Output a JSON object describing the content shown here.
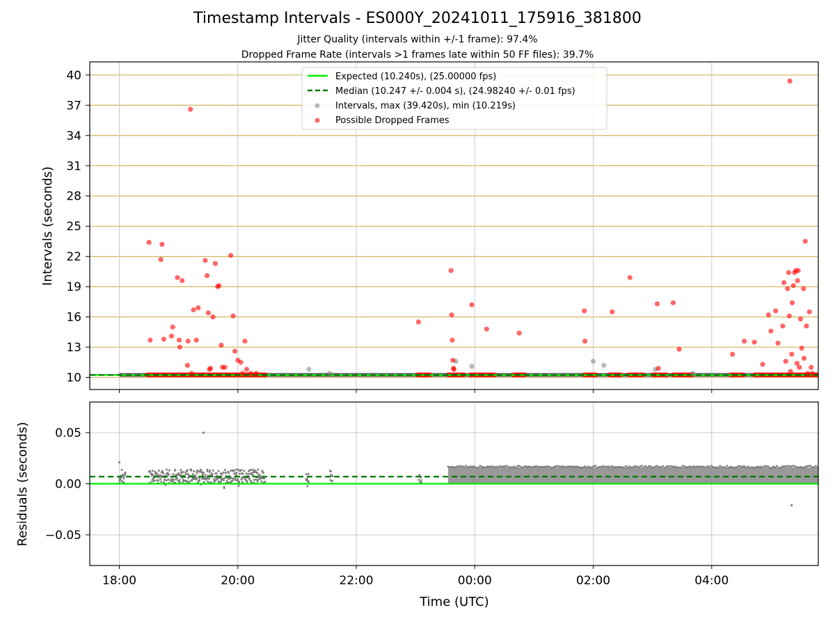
{
  "chart_data": [
    {
      "type": "scatter",
      "title": "Timestamp Intervals - ES000Y_20241011_175916_381800",
      "subtitle_lines": [
        "Jitter Quality (intervals within +/-1 frame): 97.4%",
        "Dropped Frame Rate (intervals >1 frames late within 50 FF files): 39.7%"
      ],
      "xlabel": "",
      "ylabel": "Intervals (seconds)",
      "ylim": [
        8.8,
        41.3
      ],
      "yticks": [
        10,
        13,
        16,
        19,
        22,
        25,
        28,
        31,
        34,
        37,
        40
      ],
      "xlim_hours": [
        17.5,
        29.8
      ],
      "xtick_positions_hours": [
        18,
        20,
        22,
        24,
        26,
        28
      ],
      "legend": {
        "placement": "upper center",
        "entries": [
          "Expected (10.240s), (25.00000 fps)",
          "Median (10.247 +/- 0.004 s), (24.98240 +/- 0.01 fps)",
          "Intervals, max (39.420s), min (10.219s)",
          "Possible Dropped Frames"
        ]
      },
      "expected_value": 10.24,
      "median_value": 10.247,
      "series": [
        {
          "name": "Possible Dropped Frames",
          "color": "#ff0000",
          "x": [
            18.5,
            18.52,
            18.7,
            18.72,
            18.75,
            18.88,
            18.9,
            18.98,
            19.01,
            19.02,
            19.06,
            19.15,
            19.16,
            19.2,
            19.22,
            19.25,
            19.3,
            19.33,
            19.45,
            19.48,
            19.5,
            19.52,
            19.54,
            19.58,
            19.62,
            19.66,
            19.68,
            19.72,
            19.74,
            19.78,
            19.88,
            19.92,
            19.95,
            20.0,
            20.05,
            20.08,
            20.12,
            20.15,
            20.22,
            20.31,
            23.05,
            23.6,
            23.61,
            23.62,
            23.63,
            23.64,
            23.65,
            23.95,
            24.2,
            24.75,
            25.85,
            25.86,
            26.32,
            26.62,
            27.08,
            27.1,
            27.35,
            27.45,
            28.35,
            28.55,
            28.72,
            28.86,
            28.96,
            29.0,
            29.08,
            29.12,
            29.2,
            29.22,
            29.25,
            29.28,
            29.3,
            29.31,
            29.32,
            29.33,
            29.35,
            29.36,
            29.38,
            29.4,
            29.42,
            29.44,
            29.45,
            29.46,
            29.48,
            29.5,
            29.52,
            29.55,
            29.56,
            29.58,
            29.6,
            29.62,
            29.65,
            29.68,
            29.7
          ],
          "y": [
            23.4,
            13.7,
            21.7,
            23.2,
            13.8,
            14.1,
            15.0,
            19.9,
            13.7,
            13.0,
            19.6,
            11.2,
            13.6,
            36.6,
            10.4,
            16.7,
            13.7,
            16.9,
            21.6,
            20.1,
            16.4,
            10.8,
            10.9,
            16.0,
            21.3,
            19.0,
            19.1,
            13.2,
            11.0,
            11.0,
            22.1,
            16.1,
            12.6,
            11.7,
            11.5,
            10.4,
            13.6,
            10.8,
            10.4,
            10.4,
            15.5,
            20.6,
            16.2,
            13.7,
            11.7,
            10.9,
            10.8,
            17.2,
            14.8,
            14.4,
            16.6,
            13.6,
            16.5,
            19.9,
            17.3,
            10.9,
            17.4,
            12.8,
            12.3,
            13.6,
            13.5,
            11.3,
            16.2,
            14.6,
            16.6,
            13.4,
            15.1,
            19.4,
            11.6,
            18.8,
            20.4,
            16.1,
            39.4,
            10.6,
            12.3,
            17.4,
            19.1,
            20.4,
            20.6,
            11.4,
            19.6,
            20.6,
            11.0,
            15.8,
            12.9,
            18.8,
            11.9,
            23.5,
            15.1,
            10.4,
            16.5,
            11.0,
            10.4
          ]
        },
        {
          "name": "Intervals, max (39.420s), min (10.219s)",
          "color": "#808080",
          "x": [
            21.2,
            21.55,
            23.68,
            23.95,
            26.0,
            26.18,
            27.05,
            27.68
          ],
          "y": [
            10.8,
            10.4,
            11.6,
            11.1,
            11.6,
            11.2,
            10.8,
            10.4
          ]
        }
      ],
      "dense_segments_hours": [
        [
          18.0,
          29.8
        ]
      ],
      "dropped_runs_hours": [
        [
          18.47,
          20.48
        ],
        [
          23.03,
          23.25
        ],
        [
          23.55,
          23.82
        ],
        [
          23.92,
          24.1
        ],
        [
          24.12,
          24.35
        ],
        [
          24.65,
          24.85
        ],
        [
          25.85,
          26.05
        ],
        [
          26.27,
          26.48
        ],
        [
          26.6,
          26.85
        ],
        [
          27.0,
          27.25
        ],
        [
          27.35,
          27.7
        ],
        [
          28.32,
          28.55
        ],
        [
          28.72,
          29.8
        ]
      ]
    },
    {
      "type": "scatter",
      "xlabel": "Time (UTC)",
      "ylabel": "Residuals (seconds)",
      "ylim": [
        -0.08,
        0.08
      ],
      "yticks": [
        0.05,
        0.0,
        -0.05
      ],
      "ytick_labels": [
        "0.05",
        "0.00",
        "−0.05"
      ],
      "xtick_labels": [
        "18:00",
        "20:00",
        "22:00",
        "00:00",
        "02:00",
        "04:00"
      ],
      "expected_residual": 0.0,
      "median_residual": 0.007,
      "series": [
        {
          "name": "Residuals",
          "color": "#808080",
          "outliers_x": [
            18.0,
            19.42,
            29.35
          ],
          "outliers_y": [
            0.021,
            0.05,
            -0.021
          ],
          "sparse_segments_hours": [
            [
              18.0,
              18.1
            ],
            [
              18.5,
              20.45
            ],
            [
              21.15,
              21.2
            ],
            [
              21.55,
              21.6
            ],
            [
              23.05,
              23.1
            ]
          ],
          "dense_segments_hours": [
            [
              23.55,
              29.8
            ]
          ],
          "band_range": [
            0.0,
            0.016
          ]
        }
      ]
    }
  ],
  "colors": {
    "expected": "#00ee00",
    "median": "#007700",
    "dropped": "#ff0000",
    "intervals": "#808080",
    "hgrid_top": "#d4b86a",
    "grid": "#c8c8c8"
  }
}
